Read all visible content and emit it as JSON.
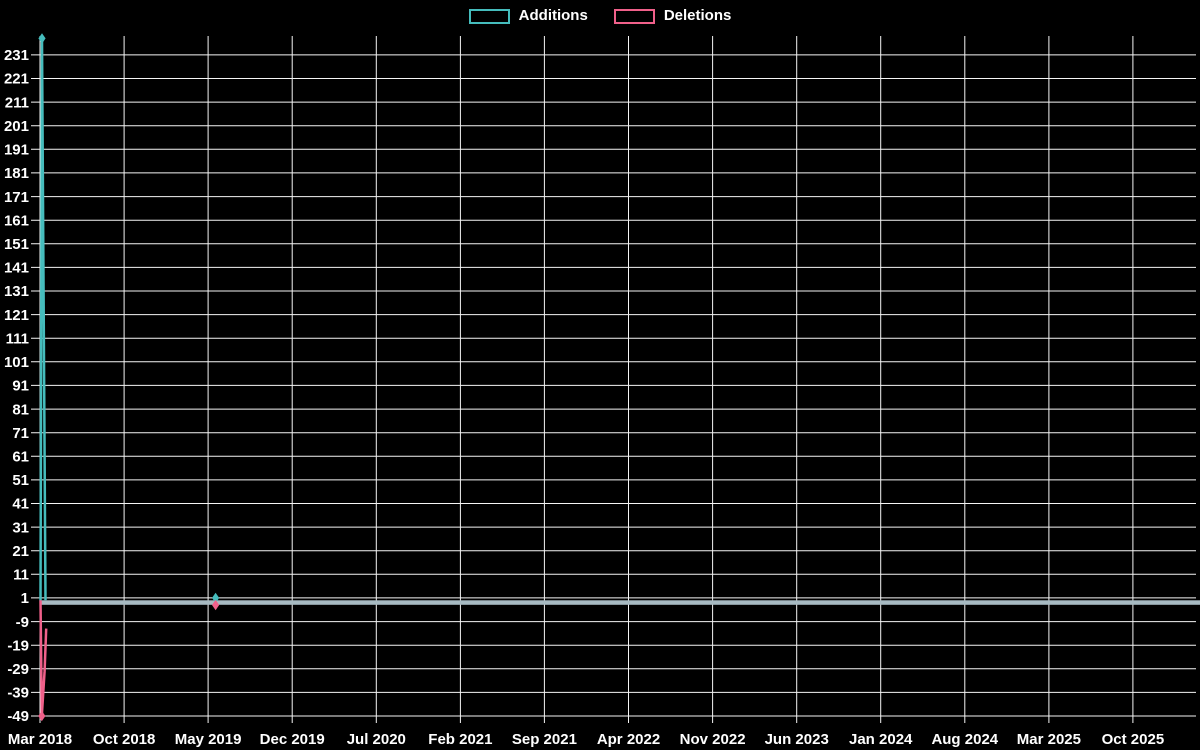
{
  "legend": {
    "items": [
      {
        "label": "Additions",
        "color": "#45bcbc"
      },
      {
        "label": "Deletions",
        "color": "#f0608a"
      }
    ]
  },
  "colors": {
    "background": "#000000",
    "grid": "#f5f5f5",
    "axis_text": "#ffffff",
    "flat_line": "#a7bac2"
  },
  "chart_data": {
    "type": "line",
    "title": "",
    "xlabel": "",
    "ylabel": "",
    "description": "Weekly code additions and deletions over time (git code-frequency style chart, dark theme). Both series sit at ~0 for almost the entire range, rendering as a single gray flat line, except a large spike in March 2018 and a tiny marked point in mid May 2019.",
    "x_ticks": [
      "Mar 2018",
      "Oct 2018",
      "May 2019",
      "Dec 2019",
      "Jul 2020",
      "Feb 2021",
      "Sep 2021",
      "Apr 2022",
      "Nov 2022",
      "Jun 2023",
      "Jan 2024",
      "Aug 2024",
      "Mar 2025",
      "Oct 2025"
    ],
    "x_tick_interval_months": 7,
    "y_ticks": [
      231,
      221,
      211,
      201,
      191,
      181,
      171,
      161,
      151,
      141,
      131,
      121,
      111,
      101,
      91,
      81,
      71,
      61,
      51,
      41,
      31,
      21,
      11,
      1,
      -9,
      -19,
      -29,
      -39,
      -49
    ],
    "ylim": [
      -49,
      239
    ],
    "xlim_months": [
      0,
      96.25
    ],
    "grid": true,
    "legend_position": "top-center",
    "flat_line_value": 0,
    "series": [
      {
        "name": "Additions",
        "color": "#45bcbc",
        "points": [
          {
            "label": "Mar 2018 (week 1)",
            "y": 0
          },
          {
            "label": "Mar 2018 (week 2)",
            "y": 238
          },
          {
            "label": "Mar 2018 (week 3)",
            "y": 0
          },
          {
            "label": "May 2019 (mid)",
            "y": 1
          },
          {
            "label": "all other weeks through Oct 2025",
            "y": 0
          }
        ],
        "draw_segments": [
          [
            [
              0.04,
              0
            ],
            [
              0.17,
              238
            ],
            [
              0.46,
              0
            ]
          ]
        ],
        "markers": [
          [
            0.17,
            238
          ],
          [
            14.62,
            1
          ]
        ]
      },
      {
        "name": "Deletions",
        "color": "#f0608a",
        "points": [
          {
            "label": "Mar 2018 (week 1)",
            "y": 0
          },
          {
            "label": "Mar 2018 (week 2)",
            "y": -49
          },
          {
            "label": "Mar 2018 (week 3)",
            "y": -31
          },
          {
            "label": "Mar 2018 (week 4)",
            "y": -12
          },
          {
            "label": "May 2019 (mid)",
            "y": -2
          },
          {
            "label": "all other weeks through Oct 2025",
            "y": 0
          }
        ],
        "draw_segments": [
          [
            [
              0.04,
              0
            ],
            [
              0.15,
              -49
            ],
            [
              0.38,
              -30
            ],
            [
              0.52,
              -12
            ]
          ]
        ],
        "markers": [
          [
            0.15,
            -49
          ],
          [
            14.62,
            -2
          ]
        ]
      }
    ]
  }
}
